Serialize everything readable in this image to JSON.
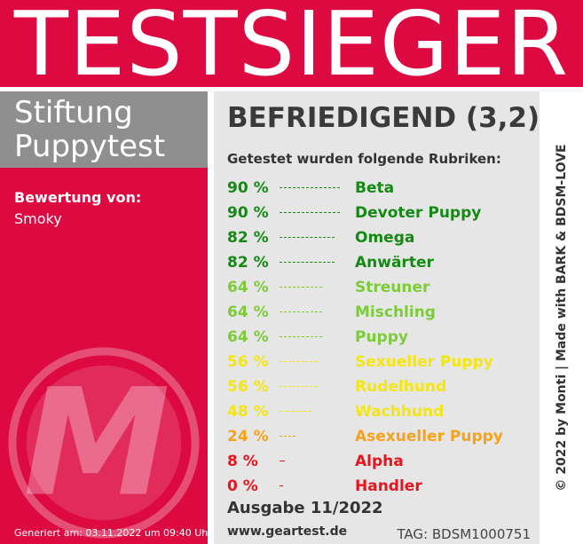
{
  "header": {
    "title": "TESTSIEGER"
  },
  "brand": {
    "line1": "Stiftung",
    "line2": "Puppytest"
  },
  "rating": {
    "label": "Bewertung von:",
    "name": "Smoky"
  },
  "logo": {
    "icon": "m-logo-icon",
    "letter": "M"
  },
  "generated": "Generiert am: 03.11.2022 um 09:40 Uhr",
  "verdict": "BEFRIEDIGEND (3,2)",
  "rubric_heading": "Getestet wurden folgende Rubriken:",
  "rubrics": [
    {
      "percent": "90 %",
      "value": 90,
      "name": "Beta",
      "color": "#148a14"
    },
    {
      "percent": "90 %",
      "value": 90,
      "name": "Devoter Puppy",
      "color": "#148a14"
    },
    {
      "percent": "82 %",
      "value": 82,
      "name": "Omega",
      "color": "#148a14"
    },
    {
      "percent": "82 %",
      "value": 82,
      "name": "Anwärter",
      "color": "#148a14"
    },
    {
      "percent": "64 %",
      "value": 64,
      "name": "Streuner",
      "color": "#7dcb3a"
    },
    {
      "percent": "64 %",
      "value": 64,
      "name": "Mischling",
      "color": "#7dcb3a"
    },
    {
      "percent": "64 %",
      "value": 64,
      "name": "Puppy",
      "color": "#7dcb3a"
    },
    {
      "percent": "56 %",
      "value": 56,
      "name": "Sexueller Puppy",
      "color": "#f3e612"
    },
    {
      "percent": "56 %",
      "value": 56,
      "name": "Rudelhund",
      "color": "#f3e612"
    },
    {
      "percent": "48 %",
      "value": 48,
      "name": "Wachhund",
      "color": "#f3e612"
    },
    {
      "percent": "24 %",
      "value": 24,
      "name": "Asexueller Puppy",
      "color": "#f7a21b"
    },
    {
      "percent": "8 %",
      "value": 8,
      "name": "Alpha",
      "color": "#e8141e"
    },
    {
      "percent": "0 %",
      "value": 0,
      "name": "Handler",
      "color": "#e8141e"
    }
  ],
  "issue": "Ausgabe 11/2022",
  "website": "www.geartest.de",
  "tag": "TAG: BDSM1000751",
  "credit": "© 2022 by Monti | Made with BARK & BDSM-LOVE",
  "colors": {
    "red": "#dc0a41",
    "gray": "#8f8f8f",
    "panel": "#e6e6e6"
  }
}
